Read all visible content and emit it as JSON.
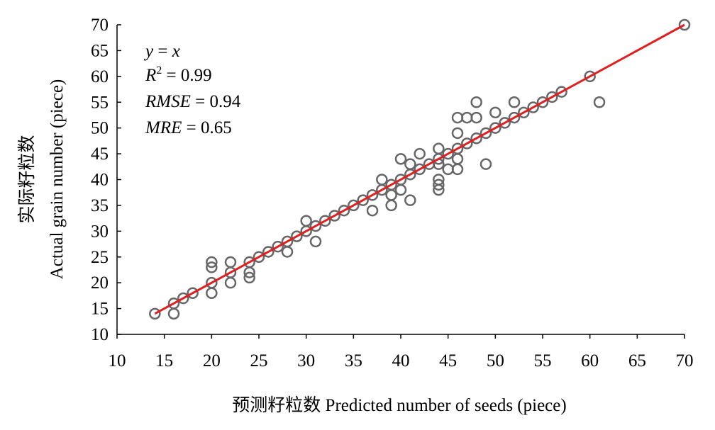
{
  "chart_data": {
    "type": "scatter",
    "title": "",
    "xlabel": "预测籽粒数 Predicted number of seeds (piece)",
    "ylabel_cn": "实际籽粒数",
    "ylabel": "Actual grain number (piece)",
    "xlim": [
      10,
      70
    ],
    "ylim": [
      10,
      70
    ],
    "xticks": [
      10,
      15,
      20,
      25,
      30,
      35,
      40,
      45,
      50,
      55,
      60,
      65,
      70
    ],
    "yticks": [
      10,
      15,
      20,
      25,
      30,
      35,
      40,
      45,
      50,
      55,
      60,
      65,
      70
    ],
    "grid": false,
    "annotations": {
      "line1_var": "y",
      "line1_rest": " = ",
      "line1_var2": "x",
      "line2_var": "R",
      "line2_sup": "2",
      "line2_rest": " = 0.99",
      "line3_var": "RMSE",
      "line3_rest": " = 0.94",
      "line4_var": "MRE",
      "line4_rest": " = 0.65"
    },
    "fit_line": {
      "x": [
        14,
        70
      ],
      "y": [
        14,
        70
      ],
      "color": "#e02020"
    },
    "marker_color": "#666666",
    "points": [
      [
        14,
        14
      ],
      [
        16,
        14
      ],
      [
        16,
        16
      ],
      [
        17,
        17
      ],
      [
        18,
        18
      ],
      [
        20,
        18
      ],
      [
        20,
        20
      ],
      [
        20,
        23
      ],
      [
        20,
        24
      ],
      [
        22,
        20
      ],
      [
        22,
        22
      ],
      [
        22,
        24
      ],
      [
        24,
        21
      ],
      [
        24,
        22
      ],
      [
        24,
        24
      ],
      [
        25,
        25
      ],
      [
        26,
        26
      ],
      [
        27,
        27
      ],
      [
        28,
        26
      ],
      [
        28,
        28
      ],
      [
        29,
        29
      ],
      [
        30,
        30
      ],
      [
        30,
        32
      ],
      [
        31,
        28
      ],
      [
        31,
        31
      ],
      [
        32,
        32
      ],
      [
        33,
        33
      ],
      [
        34,
        34
      ],
      [
        35,
        35
      ],
      [
        36,
        36
      ],
      [
        37,
        34
      ],
      [
        37,
        37
      ],
      [
        38,
        38
      ],
      [
        38,
        40
      ],
      [
        39,
        35
      ],
      [
        39,
        37
      ],
      [
        39,
        39
      ],
      [
        40,
        38
      ],
      [
        40,
        40
      ],
      [
        40,
        44
      ],
      [
        41,
        36
      ],
      [
        41,
        41
      ],
      [
        41,
        43
      ],
      [
        42,
        42
      ],
      [
        42,
        45
      ],
      [
        43,
        43
      ],
      [
        44,
        38
      ],
      [
        44,
        39
      ],
      [
        44,
        40
      ],
      [
        44,
        43
      ],
      [
        44,
        44
      ],
      [
        44,
        46
      ],
      [
        45,
        42
      ],
      [
        45,
        45
      ],
      [
        46,
        42
      ],
      [
        46,
        44
      ],
      [
        46,
        46
      ],
      [
        46,
        49
      ],
      [
        46,
        52
      ],
      [
        47,
        47
      ],
      [
        47,
        52
      ],
      [
        48,
        48
      ],
      [
        48,
        52
      ],
      [
        48,
        55
      ],
      [
        49,
        43
      ],
      [
        49,
        49
      ],
      [
        50,
        50
      ],
      [
        50,
        53
      ],
      [
        51,
        51
      ],
      [
        52,
        52
      ],
      [
        52,
        55
      ],
      [
        53,
        53
      ],
      [
        54,
        54
      ],
      [
        55,
        55
      ],
      [
        56,
        56
      ],
      [
        57,
        57
      ],
      [
        60,
        60
      ],
      [
        61,
        55
      ],
      [
        70,
        70
      ]
    ]
  }
}
